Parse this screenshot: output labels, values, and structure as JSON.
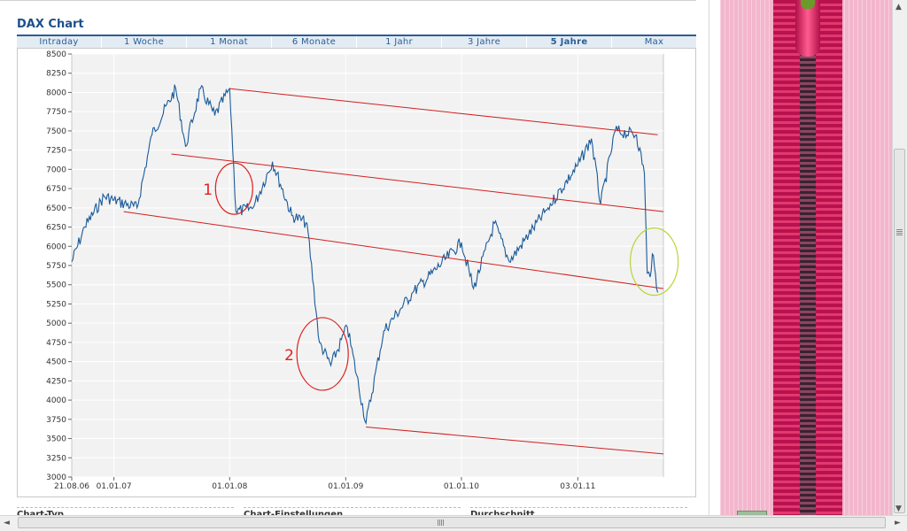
{
  "page": {
    "title": "DAX Chart"
  },
  "tabs": [
    {
      "label": "Intraday",
      "active": false
    },
    {
      "label": "1 Woche",
      "active": false
    },
    {
      "label": "1 Monat",
      "active": false
    },
    {
      "label": "6 Monate",
      "active": false
    },
    {
      "label": "1 Jahr",
      "active": false
    },
    {
      "label": "3 Jahre",
      "active": false
    },
    {
      "label": "5 Jahre",
      "active": true
    },
    {
      "label": "Max",
      "active": false
    }
  ],
  "annotations": {
    "label_1": "1",
    "label_2": "2"
  },
  "bottom_sections": {
    "chart_typ": "Chart-Typ",
    "chart_einstellungen": "Chart-Einstellungen",
    "durchschnitt": "Durchschnitt"
  },
  "scrollbars": {
    "left_arrow": "◄",
    "right_arrow": "►",
    "up_arrow": "▲",
    "down_arrow": "▼"
  },
  "colors": {
    "line": "#1a5a9a",
    "channel": "#d21f1f",
    "circle_red": "#e02020",
    "circle_green": "#b8d43a",
    "accent": "#2b5d96"
  },
  "chart_data": {
    "type": "line",
    "title": "DAX Chart",
    "ylim": [
      3000,
      8500
    ],
    "yticks": [
      3000,
      3250,
      3500,
      3750,
      4000,
      4250,
      4500,
      4750,
      5000,
      5250,
      5500,
      5750,
      6000,
      6250,
      6500,
      6750,
      7000,
      7250,
      7500,
      7750,
      8000,
      8250,
      8500
    ],
    "xlabels": [
      "21.08.06",
      "01.01.07",
      "01.01.08",
      "01.01.09",
      "01.01.10",
      "03.01.11"
    ],
    "grid": true,
    "series": [
      {
        "x": [
          "2006-08-21",
          "2006-10-01",
          "2006-12-01",
          "2007-01-01",
          "2007-03-15",
          "2007-05-01",
          "2007-07-15",
          "2007-08-15",
          "2007-10-01",
          "2007-11-15",
          "2008-01-01",
          "2008-01-21",
          "2008-03-15",
          "2008-05-15",
          "2008-07-15",
          "2008-09-01",
          "2008-10-10",
          "2008-11-15",
          "2009-01-06",
          "2009-03-06",
          "2009-05-01",
          "2009-08-01",
          "2009-10-01",
          "2010-01-01",
          "2010-02-08",
          "2010-04-15",
          "2010-06-01",
          "2010-08-01",
          "2010-10-01",
          "2011-01-03",
          "2011-02-15",
          "2011-03-16",
          "2011-05-01",
          "2011-07-07",
          "2011-08-01",
          "2011-08-10",
          "2011-08-19",
          "2011-08-26",
          "2011-09-12"
        ],
        "y": [
          5800,
          6250,
          6650,
          6600,
          6500,
          7450,
          8050,
          7300,
          8050,
          7700,
          8050,
          6450,
          6500,
          7100,
          6400,
          6300,
          4750,
          4450,
          4950,
          3700,
          4900,
          5400,
          5650,
          6050,
          5450,
          6300,
          5800,
          6150,
          6500,
          7050,
          7400,
          6550,
          7500,
          7450,
          6950,
          5650,
          5600,
          5900,
          5400
        ]
      }
    ],
    "channels": [
      {
        "x": [
          "2008-01-01",
          "2011-09-12"
        ],
        "y": [
          8050,
          7450
        ]
      },
      {
        "x": [
          "2007-07-01",
          "2011-09-30"
        ],
        "y": [
          7200,
          6450
        ]
      },
      {
        "x": [
          "2007-02-01",
          "2011-09-30"
        ],
        "y": [
          6450,
          5450
        ]
      },
      {
        "x": [
          "2009-03-06",
          "2011-09-30"
        ],
        "y": [
          3650,
          3300
        ]
      }
    ],
    "circles": [
      {
        "label": "1",
        "x": "2008-01-15",
        "y": 6750
      },
      {
        "label": "2",
        "x": "2008-10-20",
        "y": 4600
      },
      {
        "label": "",
        "x": "2011-09-01",
        "y": 5800
      }
    ]
  }
}
